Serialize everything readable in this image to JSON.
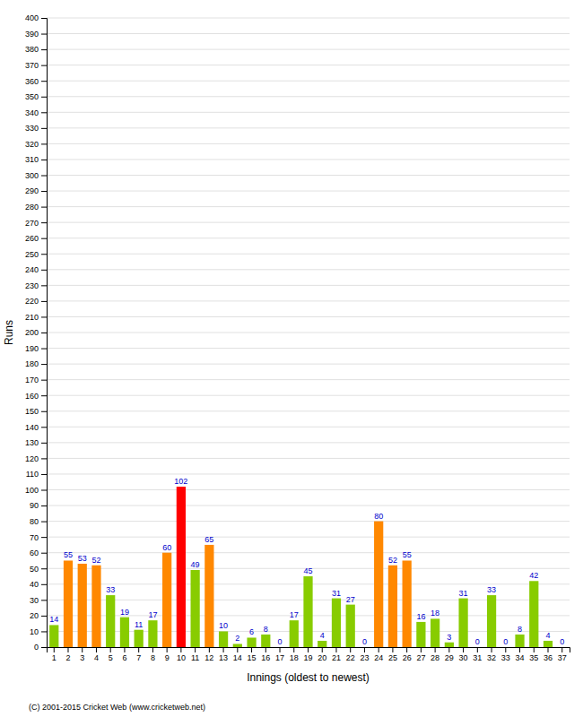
{
  "chart_data": {
    "type": "bar",
    "xlabel": "Innings (oldest to newest)",
    "ylabel": "Runs",
    "annotations": [
      "(C) 2001-2015 Cricket Web (www.cricketweb.net)"
    ],
    "categories": [
      "1",
      "2",
      "3",
      "4",
      "5",
      "6",
      "7",
      "8",
      "9",
      "10",
      "11",
      "12",
      "13",
      "14",
      "15",
      "16",
      "17",
      "18",
      "19",
      "20",
      "21",
      "22",
      "23",
      "24",
      "25",
      "26",
      "27",
      "28",
      "29",
      "30",
      "31",
      "32",
      "33",
      "34",
      "35",
      "36",
      "37"
    ],
    "values": [
      14,
      55,
      53,
      52,
      33,
      19,
      11,
      17,
      60,
      102,
      49,
      65,
      10,
      2,
      6,
      8,
      0,
      17,
      45,
      4,
      31,
      27,
      0,
      80,
      52,
      55,
      16,
      18,
      3,
      31,
      0,
      33,
      0,
      8,
      42,
      4,
      0
    ],
    "colors": [
      "#88cc00",
      "#ff8800",
      "#ff8800",
      "#ff8800",
      "#88cc00",
      "#88cc00",
      "#88cc00",
      "#88cc00",
      "#ff8800",
      "#ff0000",
      "#88cc00",
      "#ff8800",
      "#88cc00",
      "#88cc00",
      "#88cc00",
      "#88cc00",
      "#88cc00",
      "#88cc00",
      "#88cc00",
      "#88cc00",
      "#88cc00",
      "#88cc00",
      "#88cc00",
      "#ff8800",
      "#ff8800",
      "#ff8800",
      "#88cc00",
      "#88cc00",
      "#88cc00",
      "#88cc00",
      "#88cc00",
      "#88cc00",
      "#88cc00",
      "#88cc00",
      "#88cc00",
      "#88cc00",
      "#88cc00"
    ],
    "ylim": [
      0,
      400
    ],
    "yticks": [
      0,
      10,
      20,
      30,
      40,
      50,
      60,
      70,
      80,
      90,
      100,
      110,
      120,
      130,
      140,
      150,
      160,
      170,
      180,
      190,
      200,
      210,
      220,
      230,
      240,
      250,
      260,
      270,
      280,
      290,
      300,
      310,
      320,
      330,
      340,
      350,
      360,
      370,
      380,
      390,
      400
    ],
    "grid": true,
    "data_labels": true
  }
}
